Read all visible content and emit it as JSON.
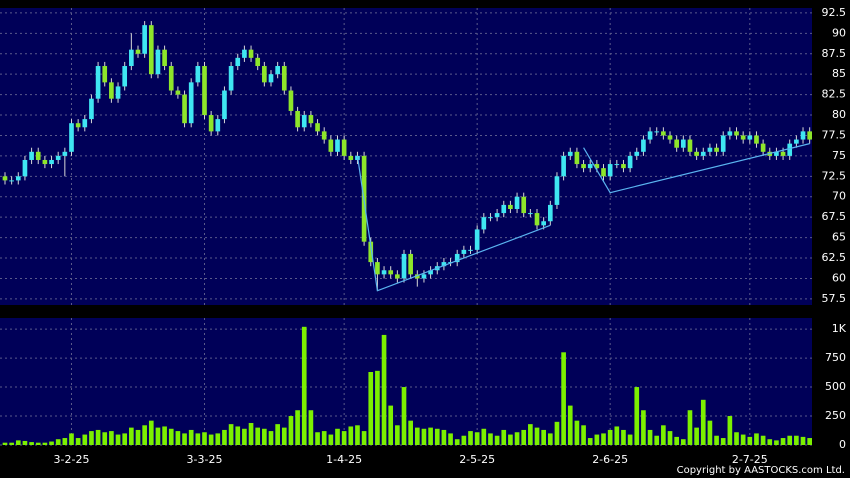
{
  "chart_data": [
    {
      "type": "candlestick",
      "up_color": "#3fe6f2",
      "down_color": "#8ee62a",
      "trend_color": "#5ab4f0",
      "grid": true,
      "xlim": [
        -0.75,
        121.35
      ],
      "xticks": [
        {
          "value": 10,
          "label": "3-2-25"
        },
        {
          "value": 30,
          "label": "3-3-25"
        },
        {
          "value": 51,
          "label": "1-4-25"
        },
        {
          "value": 71,
          "label": "2-5-25"
        },
        {
          "value": 91,
          "label": "2-6-25"
        },
        {
          "value": 112,
          "label": "2-7-25"
        }
      ],
      "ylim": [
        56.75,
        93.1
      ],
      "yticks": [
        57.5,
        60,
        62.5,
        65,
        67.5,
        70,
        72.5,
        75,
        77.5,
        80,
        82.5,
        85,
        87.5,
        90,
        92.5
      ],
      "open": [
        72.5,
        72,
        72,
        72.5,
        74.5,
        75.5,
        74.5,
        74,
        74.5,
        75,
        75.5,
        79,
        78.5,
        79.5,
        82,
        86,
        84,
        82,
        83.5,
        86,
        88,
        87.5,
        91,
        85,
        88,
        86,
        83,
        82.5,
        79,
        84,
        86,
        80,
        78,
        79.5,
        83,
        86,
        87,
        88,
        87,
        86,
        84,
        85,
        86,
        83,
        80.5,
        78.5,
        80,
        79,
        78,
        77,
        75.5,
        77,
        75,
        74.5,
        75,
        64.5,
        62,
        60.5,
        61,
        60.5,
        60,
        63,
        60.5,
        60,
        60.5,
        61,
        61.5,
        62,
        62,
        63,
        63.5,
        63.5,
        66,
        67.5,
        67.5,
        68,
        69,
        68.5,
        70,
        68,
        68,
        66.5,
        67,
        69,
        72.5,
        75,
        75.5,
        74,
        73.5,
        74,
        73.5,
        72.5,
        74,
        74,
        73.5,
        75,
        75.5,
        77,
        78,
        78,
        77.5,
        77,
        76,
        77,
        75.5,
        75,
        75.5,
        76,
        75.5,
        77.5,
        78,
        77.5,
        77,
        77.5,
        76.5,
        75.5,
        75,
        75.5,
        75,
        76.5,
        77,
        78
      ],
      "high": [
        73,
        72.5,
        73,
        75,
        76,
        76,
        75,
        75,
        75.5,
        76,
        79.5,
        79.5,
        80,
        82.5,
        86.5,
        86.5,
        84.5,
        84,
        86.5,
        90,
        88.5,
        91.5,
        91.5,
        88.5,
        88.5,
        86.5,
        83.5,
        83,
        84.5,
        86.5,
        86.5,
        80.5,
        80,
        83.5,
        86.5,
        87.5,
        88.5,
        88.5,
        87.5,
        86.5,
        85.5,
        86.5,
        86.5,
        83.5,
        81,
        80.5,
        80.5,
        79.5,
        78.5,
        77.5,
        77.5,
        77.5,
        75.5,
        75.5,
        75.5,
        65,
        62.5,
        61.5,
        61.5,
        61,
        63.5,
        63.5,
        61,
        61,
        61.5,
        62,
        62.5,
        62.5,
        63.5,
        64,
        64,
        66.5,
        68,
        68,
        68.5,
        69.5,
        69.5,
        70.5,
        70.5,
        68.5,
        68.5,
        67.5,
        69.5,
        73,
        75.5,
        76,
        76,
        74.5,
        74.5,
        74.5,
        74,
        74.5,
        74.5,
        74.5,
        75.5,
        76,
        77.5,
        78.5,
        78.5,
        78.5,
        78,
        77.5,
        77.5,
        77.5,
        76,
        76,
        76.5,
        76.5,
        78,
        78.5,
        78.5,
        78,
        78,
        78,
        77,
        76,
        76,
        76,
        77,
        77.5,
        78.5,
        78.5
      ],
      "low": [
        71.5,
        71.5,
        71.5,
        72,
        74,
        74,
        73.5,
        73.5,
        74,
        72.5,
        75,
        78,
        78,
        79,
        81.5,
        83.5,
        81.5,
        81.5,
        83,
        85.5,
        87,
        87,
        84.5,
        84.5,
        85.5,
        82.5,
        82,
        78.5,
        78.5,
        83.5,
        79.5,
        77.5,
        77.5,
        79,
        82.5,
        85.5,
        86.5,
        86.5,
        85.5,
        83.5,
        83.5,
        84.5,
        82.5,
        80,
        78,
        78,
        78.5,
        77.5,
        76.5,
        75,
        75,
        74.5,
        74,
        74,
        64,
        61.5,
        58.5,
        60,
        60,
        59.5,
        59.5,
        60,
        59,
        59.5,
        60,
        60.5,
        61,
        61.5,
        61.5,
        62.5,
        63,
        63,
        65.5,
        67,
        67,
        67.5,
        68,
        68,
        67.5,
        67.5,
        66,
        66,
        66.5,
        68.5,
        72,
        74.5,
        73.5,
        73,
        73,
        73,
        72,
        72,
        73.5,
        73,
        73,
        74.5,
        75,
        76.5,
        77.5,
        77,
        76.5,
        75.5,
        75.5,
        75,
        74.5,
        74.5,
        75,
        75,
        75,
        77,
        77,
        76.5,
        76.5,
        76,
        75,
        74.5,
        74.5,
        74.5,
        74.5,
        76,
        76.5,
        76.5
      ],
      "close": [
        72,
        72,
        72.5,
        74.5,
        75.5,
        74.5,
        74,
        74.5,
        75,
        75.5,
        79,
        78.5,
        79.5,
        82,
        86,
        84,
        82,
        83.5,
        86,
        88,
        87.5,
        91,
        85,
        88,
        86,
        83,
        82.5,
        79,
        84,
        86,
        80,
        78,
        79.5,
        83,
        86,
        87,
        88,
        87,
        86,
        84,
        85,
        86,
        83,
        80.5,
        78.5,
        80,
        79,
        78,
        77,
        75.5,
        77,
        75,
        74.5,
        75,
        64.5,
        62,
        60.5,
        61,
        60.5,
        60,
        63,
        60.5,
        60,
        60.5,
        61,
        61.5,
        62,
        62,
        63,
        63.5,
        63.5,
        66,
        67.5,
        67.5,
        68,
        69,
        68.5,
        70,
        68,
        68,
        66.5,
        67,
        69,
        72.5,
        75,
        75.5,
        74,
        73.5,
        74,
        73.5,
        72.5,
        74,
        74,
        73.5,
        75,
        75.5,
        77,
        78,
        78,
        77.5,
        77,
        76,
        77,
        75.5,
        75,
        75.5,
        76,
        75.5,
        77.5,
        78,
        77.5,
        77,
        77.5,
        76.5,
        75.5,
        75,
        75.5,
        75,
        76.5,
        77,
        78,
        77
      ],
      "trendlines": [
        {
          "points": [
            [
              53,
              75
            ],
            [
              56,
              58.5
            ],
            [
              82,
              66.5
            ]
          ]
        },
        {
          "points": [
            [
              87,
              76
            ],
            [
              91,
              70.5
            ],
            [
              121,
              76.5
            ]
          ]
        }
      ]
    },
    {
      "type": "bar",
      "color": "#7cf000",
      "grid": true,
      "ylim": [
        0,
        1096
      ],
      "yticks": [
        0,
        250,
        500,
        750,
        {
          "value": 1000,
          "label": "1K"
        }
      ],
      "values": [
        20,
        20,
        40,
        35,
        25,
        20,
        20,
        30,
        50,
        60,
        100,
        60,
        90,
        120,
        130,
        110,
        120,
        90,
        100,
        150,
        130,
        170,
        210,
        150,
        160,
        140,
        120,
        100,
        130,
        100,
        110,
        90,
        100,
        130,
        180,
        160,
        140,
        190,
        150,
        140,
        120,
        180,
        150,
        250,
        300,
        1020,
        300,
        110,
        120,
        90,
        140,
        120,
        160,
        170,
        120,
        630,
        640,
        950,
        340,
        170,
        500,
        210,
        150,
        140,
        150,
        140,
        130,
        100,
        50,
        80,
        120,
        110,
        140,
        100,
        80,
        130,
        90,
        110,
        130,
        180,
        150,
        130,
        100,
        200,
        800,
        340,
        210,
        170,
        60,
        90,
        100,
        130,
        160,
        130,
        90,
        500,
        300,
        130,
        80,
        170,
        120,
        70,
        50,
        300,
        150,
        390,
        210,
        80,
        60,
        250,
        110,
        90,
        70,
        100,
        80,
        50,
        40,
        60,
        80,
        80,
        70,
        60
      ]
    }
  ],
  "footer": "Copyright by AASTOCKS.com Ltd."
}
